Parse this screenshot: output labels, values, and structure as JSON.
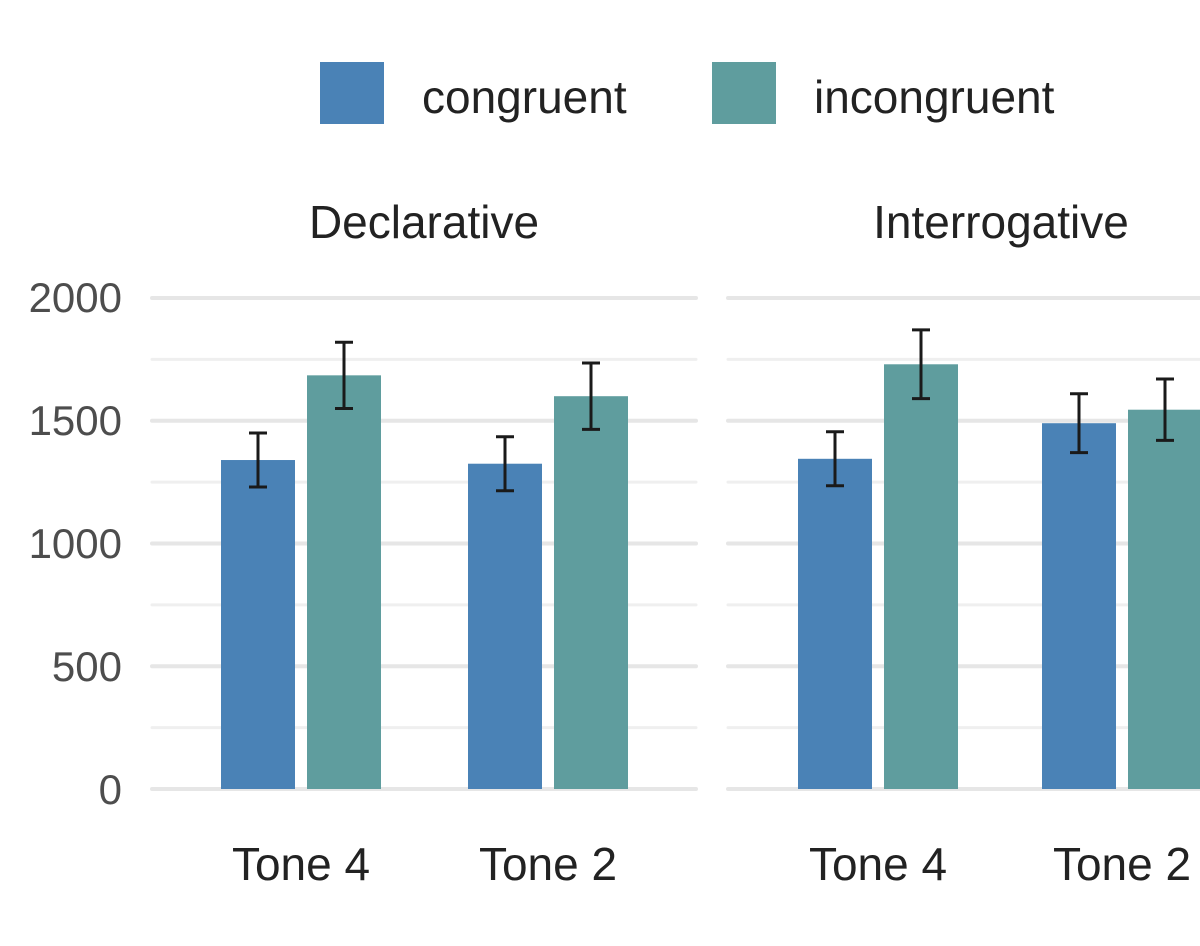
{
  "chart_data": {
    "type": "bar",
    "legend": {
      "position": "top",
      "entries": [
        {
          "label": "congruent",
          "color": "#4a82b6"
        },
        {
          "label": "incongruent",
          "color": "#5f9d9e"
        }
      ]
    },
    "y_ticks": [
      "2000",
      "1500",
      "1000",
      "500",
      "0"
    ],
    "y_tick_values": [
      2000,
      1500,
      1000,
      500,
      0
    ],
    "ylim": [
      0,
      2000
    ],
    "grid": true,
    "panels": [
      {
        "title": "Declarative",
        "categories": [
          "Tone 4",
          "Tone 2"
        ],
        "series": [
          {
            "name": "congruent",
            "values": [
              1340,
              1325
            ],
            "error": [
              110,
              110
            ]
          },
          {
            "name": "incongruent",
            "values": [
              1685,
              1600
            ],
            "error": [
              135,
              135
            ]
          }
        ]
      },
      {
        "title": "Interrogative",
        "categories": [
          "Tone 4",
          "Tone 2"
        ],
        "series": [
          {
            "name": "congruent",
            "values": [
              1345,
              1490
            ],
            "error": [
              110,
              120
            ]
          },
          {
            "name": "incongruent",
            "values": [
              1730,
              1545
            ],
            "error": [
              140,
              125
            ]
          }
        ]
      }
    ]
  }
}
